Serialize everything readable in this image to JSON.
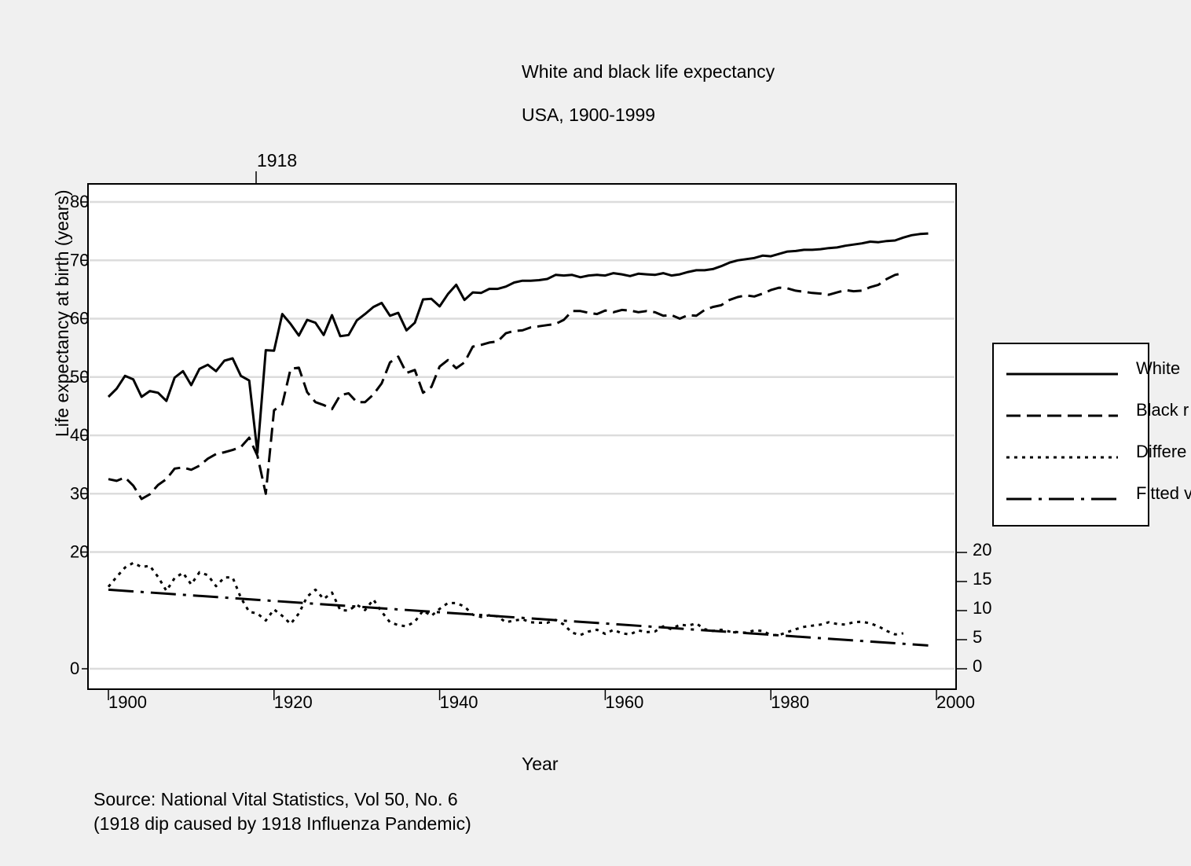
{
  "chart_data": {
    "type": "line",
    "title": "White and black life expectancy",
    "subtitle": "USA, 1900-1999",
    "xlabel": "Year",
    "ylabel": "Life expectancy at birth (years)",
    "xlim": [
      1899,
      2000
    ],
    "ylim_left": [
      -3,
      83
    ],
    "ylim_right": [
      0,
      20
    ],
    "x_ticks": [
      1900,
      1920,
      1940,
      1960,
      1980,
      2000
    ],
    "y_ticks_left": [
      0,
      20,
      30,
      40,
      50,
      60,
      70,
      80
    ],
    "y_ticks_right": [
      0,
      5,
      10,
      15,
      20
    ],
    "top_marker": {
      "label": "1918",
      "x": 1918
    },
    "grid": true,
    "legend_position": "right",
    "legend": [
      "White",
      "Black r",
      "Differe",
      "Fitted v"
    ],
    "note_lines": [
      "Source: National Vital Statistics, Vol 50, No. 6",
      "(1918 dip caused by 1918 Influenza Pandemic)"
    ],
    "years": [
      1900,
      1901,
      1902,
      1903,
      1904,
      1905,
      1906,
      1907,
      1908,
      1909,
      1910,
      1911,
      1912,
      1913,
      1914,
      1915,
      1916,
      1917,
      1918,
      1919,
      1920,
      1921,
      1922,
      1923,
      1924,
      1925,
      1926,
      1927,
      1928,
      1929,
      1930,
      1931,
      1932,
      1933,
      1934,
      1935,
      1936,
      1937,
      1938,
      1939,
      1940,
      1941,
      1942,
      1943,
      1944,
      1945,
      1946,
      1947,
      1948,
      1949,
      1950,
      1951,
      1952,
      1953,
      1954,
      1955,
      1956,
      1957,
      1958,
      1959,
      1960,
      1961,
      1962,
      1963,
      1964,
      1965,
      1966,
      1967,
      1968,
      1969,
      1970,
      1971,
      1972,
      1973,
      1974,
      1975,
      1976,
      1977,
      1978,
      1979,
      1980,
      1981,
      1982,
      1983,
      1984,
      1985,
      1986,
      1987,
      1988,
      1989,
      1990,
      1991,
      1992,
      1993,
      1994,
      1995,
      1996,
      1997,
      1998,
      1999
    ],
    "series": [
      {
        "name": "White",
        "axis": "left",
        "style": "solid",
        "values": [
          46.6,
          48.0,
          50.2,
          49.6,
          46.6,
          47.6,
          47.3,
          45.9,
          49.9,
          51.0,
          48.6,
          51.4,
          52.1,
          51.0,
          52.8,
          53.2,
          50.2,
          49.4,
          37.0,
          54.6,
          54.5,
          60.8,
          59.1,
          57.1,
          59.8,
          59.3,
          57.2,
          60.6,
          57.0,
          57.2,
          59.7,
          60.8,
          62.0,
          62.7,
          60.5,
          61.0,
          58.0,
          59.3,
          63.3,
          63.4,
          62.1,
          64.2,
          65.8,
          63.2,
          64.5,
          64.4,
          65.1,
          65.1,
          65.5,
          66.2,
          66.5,
          66.5,
          66.6,
          66.8,
          67.5,
          67.4,
          67.5,
          67.1,
          67.4,
          67.5,
          67.4,
          67.8,
          67.6,
          67.3,
          67.7,
          67.6,
          67.5,
          67.8,
          67.4,
          67.6,
          68.0,
          68.3,
          68.3,
          68.5,
          69.0,
          69.6,
          70.0,
          70.2,
          70.4,
          70.8,
          70.7,
          71.1,
          71.5,
          71.6,
          71.8,
          71.8,
          71.9,
          72.1,
          72.2,
          72.5,
          72.7,
          72.9,
          73.2,
          73.1,
          73.3,
          73.4,
          73.9,
          74.3,
          74.5,
          74.6
        ]
      },
      {
        "name": "Black r",
        "axis": "left",
        "style": "dash",
        "values": [
          32.5,
          32.2,
          32.8,
          31.4,
          29.1,
          29.9,
          31.5,
          32.5,
          34.3,
          34.5,
          34.1,
          34.8,
          36.0,
          36.8,
          37.1,
          37.5,
          38.0,
          39.6,
          36.5,
          30.0,
          44.3,
          45.3,
          51.4,
          51.6,
          47.4,
          45.7,
          45.2,
          44.5,
          46.9,
          47.2,
          45.7,
          45.7,
          47.0,
          48.9,
          52.5,
          53.5,
          50.7,
          51.2,
          47.3,
          48.3,
          51.8,
          52.9,
          51.5,
          52.5,
          55.2,
          55.5,
          55.9,
          56.1,
          57.5,
          57.9,
          58.0,
          58.5,
          58.7,
          58.9,
          59.1,
          59.8,
          61.3,
          61.3,
          61.0,
          60.8,
          61.4,
          61.1,
          61.5,
          61.4,
          61.1,
          61.3,
          61.1,
          60.5,
          60.6,
          60.0,
          60.6,
          60.5,
          61.5,
          62.0,
          62.3,
          63.2,
          63.7,
          64.0,
          63.8,
          64.3,
          64.9,
          65.3,
          65.2,
          64.8,
          64.6,
          64.4,
          64.3,
          64.1,
          64.5,
          64.9,
          64.7,
          64.8,
          65.4,
          65.8,
          66.8,
          67.5,
          67.8,
          null,
          null,
          null
        ]
      },
      {
        "name": "Differe",
        "axis": "right",
        "style": "dot",
        "values": [
          14.1,
          15.8,
          17.4,
          18.2,
          17.5,
          17.7,
          15.8,
          13.4,
          15.6,
          16.5,
          14.5,
          16.6,
          16.1,
          14.2,
          15.7,
          15.7,
          12.2,
          9.8,
          9.5,
          8.3,
          10.2,
          9.1,
          7.7,
          9.5,
          12.4,
          13.6,
          12.0,
          13.1,
          10.1,
          10.0,
          11.0,
          10.1,
          11.9,
          9.8,
          8.0,
          7.5,
          7.3,
          8.1,
          10.0,
          9.1,
          10.3,
          11.3,
          11.3,
          10.7,
          9.3,
          8.9,
          9.2,
          9.0,
          8.0,
          8.3,
          8.5,
          8.0,
          7.9,
          7.9,
          8.4,
          7.6,
          6.2,
          5.8,
          6.4,
          6.7,
          6.0,
          6.7,
          6.1,
          5.9,
          6.6,
          6.3,
          6.4,
          7.3,
          6.8,
          7.6,
          7.4,
          7.8,
          6.8,
          6.5,
          6.7,
          6.4,
          6.3,
          6.2,
          6.6,
          6.5,
          5.8,
          5.8,
          6.3,
          6.8,
          7.2,
          7.4,
          7.6,
          8.0,
          7.7,
          7.6,
          8.0,
          8.1,
          7.8,
          7.3,
          6.5,
          5.9,
          6.1,
          null,
          null,
          null
        ]
      },
      {
        "name": "Fitted v",
        "axis": "right",
        "style": "dashdot",
        "values_linear": {
          "x_start": 1900,
          "y_start": 13.6,
          "x_end": 1999,
          "y_end": 4.0
        }
      }
    ]
  }
}
